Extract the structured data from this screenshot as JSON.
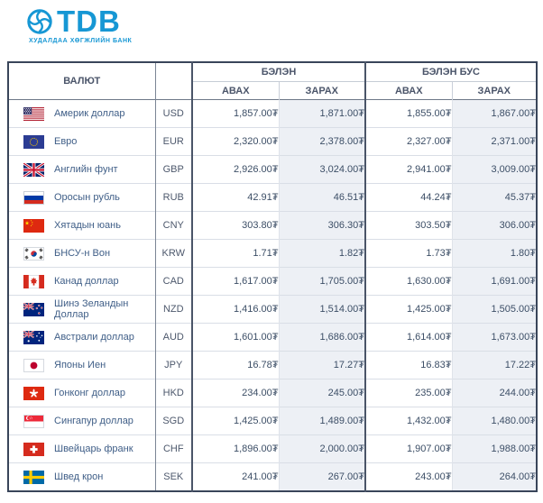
{
  "brand": {
    "name": "TDB",
    "subtitle": "ХУДАЛДАА ХӨГЖЛИЙН БАНК",
    "logo_icon": "tdb-circular-knot-icon",
    "accent_color": "#1697d4"
  },
  "table": {
    "headers": {
      "currency": "ВАЛЮТ",
      "cash_group": "БЭЛЭН",
      "noncash_group": "БЭЛЭН БУС",
      "buy": "АВАХ",
      "sell": "ЗАРАХ"
    },
    "currency_symbol": "₮",
    "rows": [
      {
        "flag": "us",
        "name": "Америк доллар",
        "code": "USD",
        "cash_buy": "1,857.00₮",
        "cash_sell": "1,871.00₮",
        "noncash_buy": "1,855.00₮",
        "noncash_sell": "1,867.00₮"
      },
      {
        "flag": "eu",
        "name": "Евро",
        "code": "EUR",
        "cash_buy": "2,320.00₮",
        "cash_sell": "2,378.00₮",
        "noncash_buy": "2,327.00₮",
        "noncash_sell": "2,371.00₮"
      },
      {
        "flag": "gb",
        "name": "Английн фунт",
        "code": "GBP",
        "cash_buy": "2,926.00₮",
        "cash_sell": "3,024.00₮",
        "noncash_buy": "2,941.00₮",
        "noncash_sell": "3,009.00₮"
      },
      {
        "flag": "ru",
        "name": "Оросын рубль",
        "code": "RUB",
        "cash_buy": "42.91₮",
        "cash_sell": "46.51₮",
        "noncash_buy": "44.24₮",
        "noncash_sell": "45.37₮"
      },
      {
        "flag": "cn",
        "name": "Хятадын юань",
        "code": "CNY",
        "cash_buy": "303.80₮",
        "cash_sell": "306.30₮",
        "noncash_buy": "303.50₮",
        "noncash_sell": "306.00₮"
      },
      {
        "flag": "kr",
        "name": "БНСУ-н Вон",
        "code": "KRW",
        "cash_buy": "1.71₮",
        "cash_sell": "1.82₮",
        "noncash_buy": "1.73₮",
        "noncash_sell": "1.80₮"
      },
      {
        "flag": "ca",
        "name": "Канад доллар",
        "code": "CAD",
        "cash_buy": "1,617.00₮",
        "cash_sell": "1,705.00₮",
        "noncash_buy": "1,630.00₮",
        "noncash_sell": "1,691.00₮"
      },
      {
        "flag": "nz",
        "name": "Шинэ Зеландын Доллар",
        "code": "NZD",
        "cash_buy": "1,416.00₮",
        "cash_sell": "1,514.00₮",
        "noncash_buy": "1,425.00₮",
        "noncash_sell": "1,505.00₮"
      },
      {
        "flag": "au",
        "name": "Австрали доллар",
        "code": "AUD",
        "cash_buy": "1,601.00₮",
        "cash_sell": "1,686.00₮",
        "noncash_buy": "1,614.00₮",
        "noncash_sell": "1,673.00₮"
      },
      {
        "flag": "jp",
        "name": "Японы Иен",
        "code": "JPY",
        "cash_buy": "16.78₮",
        "cash_sell": "17.27₮",
        "noncash_buy": "16.83₮",
        "noncash_sell": "17.22₮"
      },
      {
        "flag": "hk",
        "name": "Гонконг доллар",
        "code": "HKD",
        "cash_buy": "234.00₮",
        "cash_sell": "245.00₮",
        "noncash_buy": "235.00₮",
        "noncash_sell": "244.00₮"
      },
      {
        "flag": "sg",
        "name": "Сингапур доллар",
        "code": "SGD",
        "cash_buy": "1,425.00₮",
        "cash_sell": "1,489.00₮",
        "noncash_buy": "1,432.00₮",
        "noncash_sell": "1,480.00₮"
      },
      {
        "flag": "ch",
        "name": "Швейцарь франк",
        "code": "CHF",
        "cash_buy": "1,896.00₮",
        "cash_sell": "2,000.00₮",
        "noncash_buy": "1,907.00₮",
        "noncash_sell": "1,988.00₮"
      },
      {
        "flag": "se",
        "name": "Швед крон",
        "code": "SEK",
        "cash_buy": "241.00₮",
        "cash_sell": "267.00₮",
        "noncash_buy": "243.00₮",
        "noncash_sell": "264.00₮"
      }
    ]
  },
  "colors": {
    "accent_blue": "#1697d4",
    "header_text": "#4b556a",
    "currency_name_text": "#3f5e87",
    "rate_text": "#3c4e66",
    "sell_column_bg": "#edf0f5",
    "outer_border": "#39455a",
    "row_divider": "#d9dee6"
  }
}
